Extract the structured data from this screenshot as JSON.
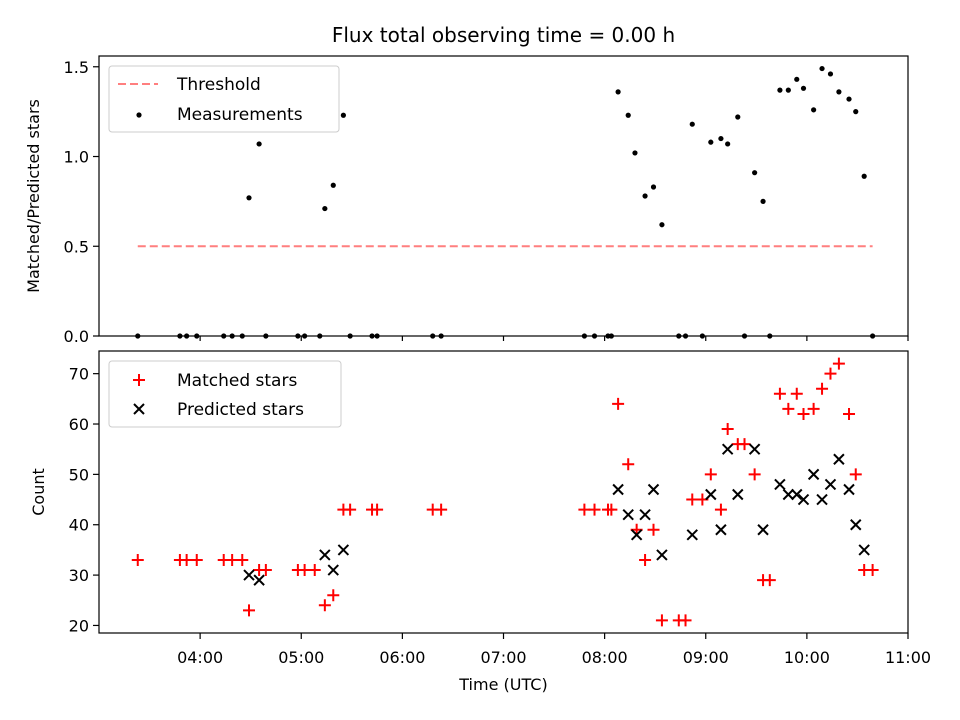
{
  "chart_data": [
    {
      "type": "scatter",
      "title": "Flux total observing time = 0.00 h",
      "ylabel": "Matched/Predicted stars",
      "xlim": [
        "03:00",
        "11:00"
      ],
      "ylim": [
        0,
        1.56
      ],
      "yticks": [
        "0.0",
        "0.5",
        "1.0",
        "1.5"
      ],
      "legend_position": "upper-left",
      "series": [
        {
          "name": "Threshold",
          "style": "dashed-line",
          "color": "#ff7f7f",
          "points": [
            [
              "03:23",
              0.5
            ],
            [
              "10:39",
              0.5
            ]
          ]
        },
        {
          "name": "Measurements",
          "style": "dot",
          "color": "#000000",
          "points": [
            [
              "03:23",
              0.0
            ],
            [
              "03:48",
              0.0
            ],
            [
              "03:52",
              0.0
            ],
            [
              "03:58",
              0.0
            ],
            [
              "04:14",
              0.0
            ],
            [
              "04:19",
              0.0
            ],
            [
              "04:25",
              0.0
            ],
            [
              "04:29",
              0.77
            ],
            [
              "04:35",
              1.07
            ],
            [
              "04:39",
              0.0
            ],
            [
              "04:58",
              0.0
            ],
            [
              "05:02",
              0.0
            ],
            [
              "05:11",
              0.0
            ],
            [
              "05:14",
              0.71
            ],
            [
              "05:19",
              0.84
            ],
            [
              "05:25",
              1.23
            ],
            [
              "05:29",
              0.0
            ],
            [
              "05:42",
              0.0
            ],
            [
              "05:45",
              0.0
            ],
            [
              "06:18",
              0.0
            ],
            [
              "06:23",
              0.0
            ],
            [
              "07:48",
              0.0
            ],
            [
              "07:54",
              0.0
            ],
            [
              "08:02",
              0.0
            ],
            [
              "08:04",
              0.0
            ],
            [
              "08:08",
              1.36
            ],
            [
              "08:14",
              1.23
            ],
            [
              "08:18",
              1.02
            ],
            [
              "08:24",
              0.78
            ],
            [
              "08:29",
              0.83
            ],
            [
              "08:34",
              0.62
            ],
            [
              "08:44",
              0.0
            ],
            [
              "08:48",
              0.0
            ],
            [
              "08:52",
              1.18
            ],
            [
              "08:58",
              0.0
            ],
            [
              "09:03",
              1.08
            ],
            [
              "09:09",
              1.1
            ],
            [
              "09:13",
              1.07
            ],
            [
              "09:19",
              1.22
            ],
            [
              "09:23",
              0.0
            ],
            [
              "09:29",
              0.91
            ],
            [
              "09:34",
              0.75
            ],
            [
              "09:38",
              0.0
            ],
            [
              "09:44",
              1.37
            ],
            [
              "09:49",
              1.37
            ],
            [
              "09:54",
              1.43
            ],
            [
              "09:58",
              1.38
            ],
            [
              "10:04",
              1.26
            ],
            [
              "10:09",
              1.49
            ],
            [
              "10:14",
              1.46
            ],
            [
              "10:19",
              1.36
            ],
            [
              "10:25",
              1.32
            ],
            [
              "10:29",
              1.25
            ],
            [
              "10:34",
              0.89
            ],
            [
              "10:39",
              0.0
            ]
          ]
        }
      ]
    },
    {
      "type": "scatter",
      "xlabel": "Time (UTC)",
      "ylabel": "Count",
      "xlim": [
        "03:00",
        "11:00"
      ],
      "ylim": [
        18.5,
        74.5
      ],
      "xticks": [
        "04:00",
        "05:00",
        "06:00",
        "07:00",
        "08:00",
        "09:00",
        "10:00",
        "11:00"
      ],
      "yticks": [
        "20",
        "30",
        "40",
        "50",
        "60",
        "70"
      ],
      "legend_position": "upper-left",
      "series": [
        {
          "name": "Matched stars",
          "style": "plus",
          "color": "#ff0000",
          "points": [
            [
              "03:23",
              33
            ],
            [
              "03:48",
              33
            ],
            [
              "03:52",
              33
            ],
            [
              "03:58",
              33
            ],
            [
              "04:14",
              33
            ],
            [
              "04:19",
              33
            ],
            [
              "04:25",
              33
            ],
            [
              "04:29",
              23
            ],
            [
              "04:35",
              31
            ],
            [
              "04:39",
              31
            ],
            [
              "04:58",
              31
            ],
            [
              "05:02",
              31
            ],
            [
              "05:08",
              31
            ],
            [
              "05:14",
              24
            ],
            [
              "05:19",
              26
            ],
            [
              "05:25",
              43
            ],
            [
              "05:29",
              43
            ],
            [
              "05:42",
              43
            ],
            [
              "05:45",
              43
            ],
            [
              "06:18",
              43
            ],
            [
              "06:23",
              43
            ],
            [
              "07:48",
              43
            ],
            [
              "07:54",
              43
            ],
            [
              "08:02",
              43
            ],
            [
              "08:04",
              43
            ],
            [
              "08:08",
              64
            ],
            [
              "08:14",
              52
            ],
            [
              "08:19",
              39
            ],
            [
              "08:24",
              33
            ],
            [
              "08:29",
              39
            ],
            [
              "08:34",
              21
            ],
            [
              "08:44",
              21
            ],
            [
              "08:48",
              21
            ],
            [
              "08:52",
              45
            ],
            [
              "08:58",
              45
            ],
            [
              "09:03",
              50
            ],
            [
              "09:09",
              43
            ],
            [
              "09:13",
              59
            ],
            [
              "09:19",
              56
            ],
            [
              "09:23",
              56
            ],
            [
              "09:29",
              50
            ],
            [
              "09:34",
              29
            ],
            [
              "09:38",
              29
            ],
            [
              "09:44",
              66
            ],
            [
              "09:49",
              63
            ],
            [
              "09:54",
              66
            ],
            [
              "09:58",
              62
            ],
            [
              "10:04",
              63
            ],
            [
              "10:09",
              67
            ],
            [
              "10:14",
              70
            ],
            [
              "10:19",
              72
            ],
            [
              "10:25",
              62
            ],
            [
              "10:29",
              50
            ],
            [
              "10:34",
              31
            ],
            [
              "10:39",
              31
            ]
          ]
        },
        {
          "name": "Predicted stars",
          "style": "x",
          "color": "#000000",
          "points": [
            [
              "04:29",
              30
            ],
            [
              "04:35",
              29
            ],
            [
              "05:14",
              34
            ],
            [
              "05:19",
              31
            ],
            [
              "05:25",
              35
            ],
            [
              "08:08",
              47
            ],
            [
              "08:14",
              42
            ],
            [
              "08:19",
              38
            ],
            [
              "08:24",
              42
            ],
            [
              "08:29",
              47
            ],
            [
              "08:34",
              34
            ],
            [
              "08:52",
              38
            ],
            [
              "09:03",
              46
            ],
            [
              "09:09",
              39
            ],
            [
              "09:13",
              55
            ],
            [
              "09:19",
              46
            ],
            [
              "09:29",
              55
            ],
            [
              "09:34",
              39
            ],
            [
              "09:44",
              48
            ],
            [
              "09:49",
              46
            ],
            [
              "09:54",
              46
            ],
            [
              "09:58",
              45
            ],
            [
              "10:04",
              50
            ],
            [
              "10:09",
              45
            ],
            [
              "10:14",
              48
            ],
            [
              "10:19",
              53
            ],
            [
              "10:25",
              47
            ],
            [
              "10:29",
              40
            ],
            [
              "10:34",
              35
            ]
          ]
        }
      ]
    }
  ]
}
